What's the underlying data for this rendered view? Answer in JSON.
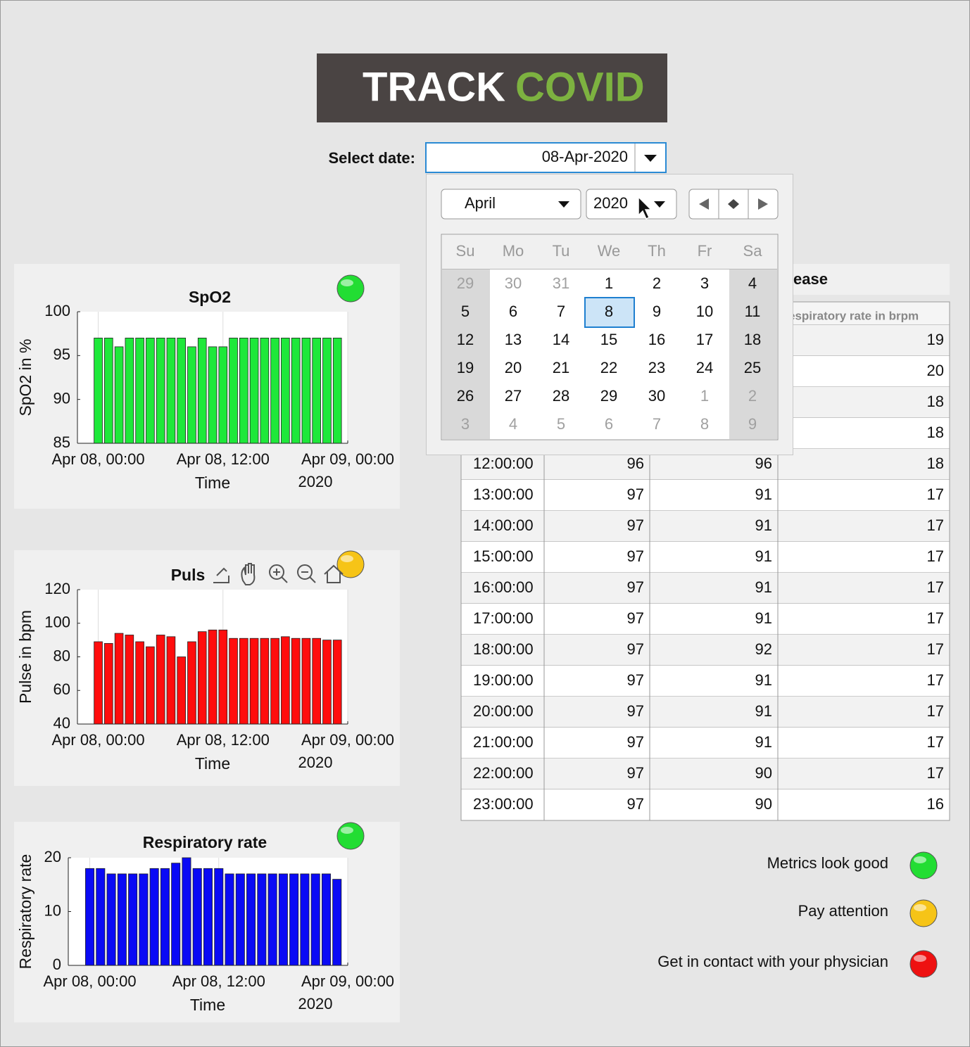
{
  "header": {
    "logo_left": "TRACK",
    "logo_right": "COVID"
  },
  "date_selector": {
    "label": "Select date:",
    "value": "08-Apr-2020"
  },
  "calendar": {
    "month": "April",
    "year": "2020",
    "weekdays": [
      "Su",
      "Mo",
      "Tu",
      "We",
      "Th",
      "Fr",
      "Sa"
    ],
    "weeks": [
      [
        29,
        30,
        31,
        1,
        2,
        3,
        4
      ],
      [
        5,
        6,
        7,
        8,
        9,
        10,
        11
      ],
      [
        12,
        13,
        14,
        15,
        16,
        17,
        18
      ],
      [
        19,
        20,
        21,
        22,
        23,
        24,
        25
      ],
      [
        26,
        27,
        28,
        29,
        30,
        1,
        2
      ],
      [
        3,
        4,
        5,
        6,
        7,
        8,
        9
      ]
    ],
    "selected_day": 8
  },
  "chart_data": [
    {
      "type": "bar",
      "title": "SpO2",
      "ylabel": "SpO2 in %",
      "xlabel": "Time",
      "x_axis_year": "2020",
      "color": "#1ee83a",
      "status_color": "#22dd33",
      "x": [
        0,
        1,
        2,
        3,
        4,
        5,
        6,
        7,
        8,
        9,
        10,
        11,
        12,
        13,
        14,
        15,
        16,
        17,
        18,
        19,
        20,
        21,
        22,
        23
      ],
      "values": [
        97,
        97,
        96,
        97,
        97,
        97,
        97,
        97,
        97,
        96,
        97,
        96,
        96,
        97,
        97,
        97,
        97,
        97,
        97,
        97,
        97,
        97,
        97,
        97
      ],
      "xlim": [
        -2,
        24
      ],
      "ylim": [
        85,
        100
      ],
      "yticks": [
        85,
        90,
        95,
        100
      ],
      "xticks": [
        {
          "value": 0,
          "label": "Apr 08, 00:00"
        },
        {
          "value": 12,
          "label": "Apr 08, 12:00"
        },
        {
          "value": 24,
          "label": "Apr 09, 00:00"
        }
      ],
      "xgrid": true
    },
    {
      "type": "bar",
      "title": "Puls",
      "ylabel": "Pulse in bpm",
      "xlabel": "Time",
      "x_axis_year": "2020",
      "color": "#ff0d0d",
      "status_color": "#f6c417",
      "x": [
        0,
        1,
        2,
        3,
        4,
        5,
        6,
        7,
        8,
        9,
        10,
        11,
        12,
        13,
        14,
        15,
        16,
        17,
        18,
        19,
        20,
        21,
        22,
        23
      ],
      "values": [
        89,
        88,
        94,
        93,
        89,
        86,
        93,
        92,
        80,
        89,
        95,
        96,
        96,
        91,
        91,
        91,
        91,
        91,
        92,
        91,
        91,
        91,
        90,
        90
      ],
      "xlim": [
        -2,
        24
      ],
      "ylim": [
        40,
        120
      ],
      "yticks": [
        40,
        60,
        80,
        100,
        120
      ],
      "xticks": [
        {
          "value": 0,
          "label": "Apr 08, 00:00"
        },
        {
          "value": 12,
          "label": "Apr 08, 12:00"
        },
        {
          "value": 24,
          "label": "Apr 09, 00:00"
        }
      ],
      "xgrid": true
    },
    {
      "type": "bar",
      "title": "Respiratory rate",
      "ylabel": "Respiratory rate",
      "xlabel": "Time",
      "x_axis_year": "2020",
      "color": "#0a0af5",
      "status_color": "#22dd33",
      "x": [
        0,
        1,
        2,
        3,
        4,
        5,
        6,
        7,
        8,
        9,
        10,
        11,
        12,
        13,
        14,
        15,
        16,
        17,
        18,
        19,
        20,
        21,
        22,
        23
      ],
      "values": [
        18,
        18,
        17,
        17,
        17,
        17,
        18,
        18,
        19,
        20,
        18,
        18,
        18,
        17,
        17,
        17,
        17,
        17,
        17,
        17,
        17,
        17,
        17,
        16
      ],
      "xlim": [
        -2,
        24
      ],
      "ylim": [
        0,
        20
      ],
      "yticks": [
        0,
        10,
        20
      ],
      "xticks": [
        {
          "value": 0,
          "label": "Apr 08, 00:00"
        },
        {
          "value": 12,
          "label": "Apr 08, 12:00"
        },
        {
          "value": 24,
          "label": "Apr 09, 00:00"
        }
      ],
      "xgrid": true
    }
  ],
  "table": {
    "title": "ease",
    "partial_header": "espiratory rate in brpm",
    "partial_rows": [
      19,
      20,
      18,
      18
    ],
    "rows": [
      [
        "12:00:00",
        96,
        96,
        18
      ],
      [
        "13:00:00",
        97,
        91,
        17
      ],
      [
        "14:00:00",
        97,
        91,
        17
      ],
      [
        "15:00:00",
        97,
        91,
        17
      ],
      [
        "16:00:00",
        97,
        91,
        17
      ],
      [
        "17:00:00",
        97,
        91,
        17
      ],
      [
        "18:00:00",
        97,
        92,
        17
      ],
      [
        "19:00:00",
        97,
        91,
        17
      ],
      [
        "20:00:00",
        97,
        91,
        17
      ],
      [
        "21:00:00",
        97,
        91,
        17
      ],
      [
        "22:00:00",
        97,
        90,
        17
      ],
      [
        "23:00:00",
        97,
        90,
        16
      ]
    ]
  },
  "legend": [
    {
      "label": "Metrics look good",
      "color": "#22dd33"
    },
    {
      "label": "Pay attention",
      "color": "#f6c417"
    },
    {
      "label": "Get in contact with your physician",
      "color": "#ee1111"
    }
  ]
}
